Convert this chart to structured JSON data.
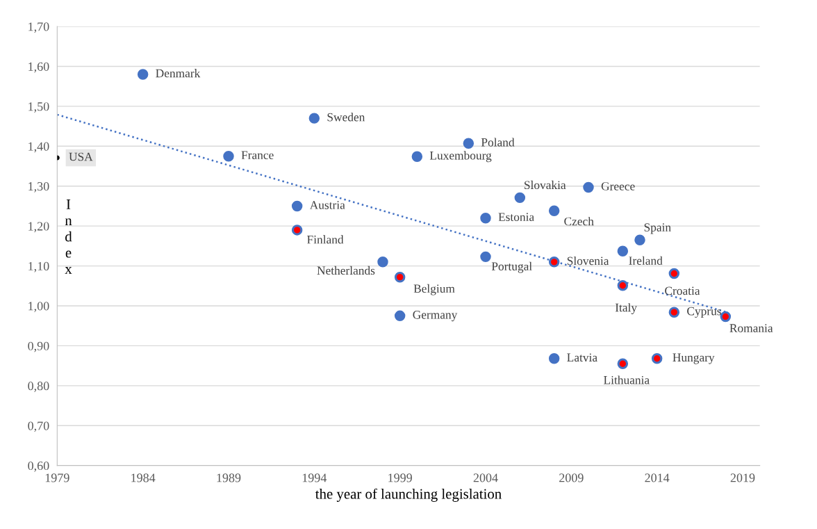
{
  "chart_data": {
    "type": "scatter",
    "xlabel": "the year of launching legislation",
    "ylabel": "Index",
    "xlim": [
      1979,
      2020
    ],
    "ylim": [
      0.6,
      1.7
    ],
    "xticks": [
      1979,
      1984,
      1989,
      1994,
      1999,
      2004,
      2009,
      2014,
      2019
    ],
    "yticks": [
      {
        "value": 0.6,
        "label": "0,60"
      },
      {
        "value": 0.7,
        "label": "0,70"
      },
      {
        "value": 0.8,
        "label": "0,80"
      },
      {
        "value": 0.9,
        "label": "0,90"
      },
      {
        "value": 1.0,
        "label": "1,00"
      },
      {
        "value": 1.1,
        "label": "1,10"
      },
      {
        "value": 1.2,
        "label": "1,20"
      },
      {
        "value": 1.3,
        "label": "1,30"
      },
      {
        "value": 1.4,
        "label": "1,40"
      },
      {
        "value": 1.5,
        "label": "1,50"
      },
      {
        "value": 1.6,
        "label": "1,60"
      },
      {
        "value": 1.7,
        "label": "1,70"
      }
    ],
    "grid": "y",
    "marker": "circle",
    "series": [
      {
        "type": "scatter",
        "color": "#4472c4",
        "x": [
          1984,
          1994,
          1989,
          2000,
          2003,
          2006,
          2010,
          1993,
          2004,
          2008,
          2013,
          2012,
          1998,
          2004,
          1999,
          2008
        ],
        "values": [
          1.58,
          1.47,
          1.375,
          1.374,
          1.407,
          1.271,
          1.297,
          1.25,
          1.22,
          1.238,
          1.165,
          1.137,
          1.11,
          1.123,
          0.975,
          0.868
        ]
      },
      {
        "type": "scatter",
        "color": "#ff0000",
        "x": [
          1993,
          2008,
          1999,
          2012,
          2015,
          2015,
          2018,
          2012,
          2014
        ],
        "values": [
          1.19,
          1.11,
          1.072,
          1.051,
          1.081,
          0.984,
          0.973,
          0.855,
          0.868
        ]
      },
      {
        "type": "scatter",
        "color": "#000000",
        "x": [
          1979
        ],
        "values": [
          1.371
        ]
      },
      {
        "type": "line",
        "color": "#4472c4",
        "line_style": "dotted",
        "marker": "none",
        "x": [
          1979,
          2018
        ],
        "values": [
          1.479,
          0.985
        ]
      }
    ],
    "annotations": [
      {
        "text": "Denmark",
        "x": 1984,
        "y": 1.58
      },
      {
        "text": "Sweden",
        "x": 1994,
        "y": 1.47
      },
      {
        "text": "France",
        "x": 1989,
        "y": 1.375
      },
      {
        "text": "Luxembourg",
        "x": 2000,
        "y": 1.374
      },
      {
        "text": "Poland",
        "x": 2003,
        "y": 1.407
      },
      {
        "text": "Slovakia",
        "x": 2006,
        "y": 1.271
      },
      {
        "text": "Greece",
        "x": 2010,
        "y": 1.297
      },
      {
        "text": "Austria",
        "x": 1993,
        "y": 1.25
      },
      {
        "text": "Estonia",
        "x": 2004,
        "y": 1.22
      },
      {
        "text": "Czech",
        "x": 2008,
        "y": 1.238
      },
      {
        "text": "Finland",
        "x": 1993,
        "y": 1.19
      },
      {
        "text": "Spain",
        "x": 2013,
        "y": 1.165
      },
      {
        "text": "Ireland",
        "x": 2012,
        "y": 1.137
      },
      {
        "text": "Netherlands",
        "x": 1998,
        "y": 1.11
      },
      {
        "text": "Portugal",
        "x": 2004,
        "y": 1.123
      },
      {
        "text": "Slovenia",
        "x": 2008,
        "y": 1.11
      },
      {
        "text": "Belgium",
        "x": 1999,
        "y": 1.072
      },
      {
        "text": "Italy",
        "x": 2012,
        "y": 1.051
      },
      {
        "text": "Croatia",
        "x": 2015,
        "y": 1.081
      },
      {
        "text": "Germany",
        "x": 1999,
        "y": 0.975
      },
      {
        "text": "Cyprus",
        "x": 2015,
        "y": 0.984
      },
      {
        "text": "Romania",
        "x": 2018,
        "y": 0.973
      },
      {
        "text": "Latvia",
        "x": 2008,
        "y": 0.868
      },
      {
        "text": "Lithuania",
        "x": 2012,
        "y": 0.855
      },
      {
        "text": "Hungary",
        "x": 2014,
        "y": 0.868
      },
      {
        "text": "USA",
        "x": 1979,
        "y": 1.371
      }
    ]
  }
}
